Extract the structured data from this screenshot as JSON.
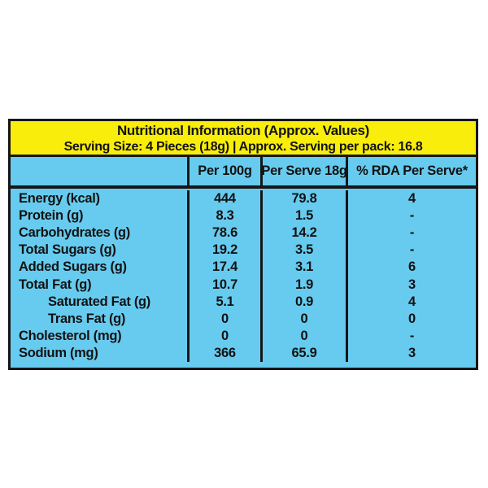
{
  "colors": {
    "page_bg": "#ffffff",
    "header_bg": "#F8ED0B",
    "table_bg": "#67CBEF",
    "border": "#161616",
    "text": "#121212"
  },
  "header": {
    "title": "Nutritional Information (Approx. Values)",
    "serving_line": "Serving Size: 4 Pieces (18g) | Approx. Serving per pack: 16.8"
  },
  "columns": {
    "name": "",
    "per_100g": "Per 100g",
    "per_serve": "Per Serve 18g",
    "rda": "% RDA Per Serve*"
  },
  "rows": [
    {
      "name": "Energy (kcal)",
      "per_100g": "444",
      "per_serve": "79.8",
      "rda": "4"
    },
    {
      "name": "Protein (g)",
      "per_100g": "8.3",
      "per_serve": "1.5",
      "rda": "-"
    },
    {
      "name": "Carbohydrates (g)",
      "per_100g": "78.6",
      "per_serve": "14.2",
      "rda": "-"
    },
    {
      "name": "Total Sugars (g)",
      "per_100g": "19.2",
      "per_serve": "3.5",
      "rda": "-"
    },
    {
      "name": "Added Sugars (g)",
      "per_100g": "17.4",
      "per_serve": "3.1",
      "rda": "6"
    },
    {
      "name": "Total Fat (g)",
      "per_100g": "10.7",
      "per_serve": "1.9",
      "rda": "3"
    },
    {
      "name": "Saturated Fat (g)",
      "per_100g": "5.1",
      "per_serve": "0.9",
      "rda": "4"
    },
    {
      "name": "Trans Fat (g)",
      "per_100g": "0",
      "per_serve": "0",
      "rda": "0"
    },
    {
      "name": "Cholesterol (mg)",
      "per_100g": "0",
      "per_serve": "0",
      "rda": "-"
    },
    {
      "name": "Sodium (mg)",
      "per_100g": "366",
      "per_serve": "65.9",
      "rda": "3"
    }
  ]
}
